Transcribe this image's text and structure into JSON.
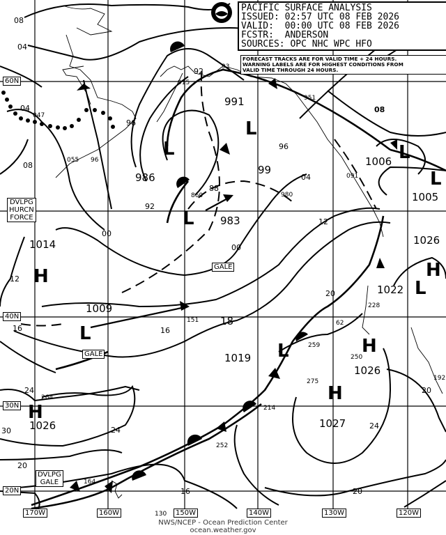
{
  "header": {
    "title": "PACIFIC SURFACE ANALYSIS",
    "issued": "ISSUED: 02:57 UTC 08 FEB 2026",
    "valid": "VALID:  00:00 UTC 08 FEB 2026",
    "forecaster": "FCSTR:  ANDERSON",
    "sources": "SOURCES: OPC NHC WPC HFO"
  },
  "note": [
    "FORECAST TRACKS ARE FOR VALID TIME + 24 HOURS.",
    "WARNING LABELS ARE FOR HIGHEST CONDITIONS FROM",
    "VALID TIME THROUGH 24 HOURS."
  ],
  "logo": "NOAA",
  "grid": {
    "latitudes": [
      "60N",
      "40N",
      "30N",
      "20N"
    ],
    "longitudes": [
      "170W",
      "160W",
      "150W",
      "140W",
      "130W",
      "120W"
    ]
  },
  "systems": [
    {
      "symbol": "L",
      "pressure": "991"
    },
    {
      "symbol": "L",
      "pressure": "986"
    },
    {
      "symbol": "L",
      "pressure": "983"
    },
    {
      "symbol": "L",
      "pressure": "99"
    },
    {
      "symbol": "H",
      "pressure": "1014"
    },
    {
      "symbol": "L",
      "pressure": "1009"
    },
    {
      "symbol": "L",
      "pressure": "1019"
    },
    {
      "symbol": "H",
      "pressure": "1026"
    },
    {
      "symbol": "H",
      "pressure": "1026"
    },
    {
      "symbol": "H",
      "pressure": "1027"
    },
    {
      "symbol": "L",
      "pressure": "1006"
    },
    {
      "symbol": "L",
      "pressure": "1005"
    },
    {
      "symbol": "H",
      "pressure": "1026"
    },
    {
      "symbol": "L",
      "pressure": "1022"
    }
  ],
  "isobar_labels": [
    "08",
    "04",
    "04",
    "08",
    "96",
    "92",
    "00",
    "12",
    "16",
    "16",
    "24",
    "30",
    "20",
    "24",
    "16",
    "20",
    "24",
    "20",
    "12",
    "04",
    "96",
    "88",
    "00",
    "18",
    "08",
    "20",
    "92"
  ],
  "station_labels": [
    "047",
    "055",
    "93",
    "915",
    "951",
    "091",
    "860",
    "980",
    "151",
    "264",
    "228",
    "259",
    "275",
    "214",
    "252",
    "164",
    "192",
    "62",
    "250",
    "130",
    "96"
  ],
  "warnings": {
    "hurricane_force": [
      "DVLPG",
      "HURCN",
      "FORCE"
    ],
    "gale_1": "GALE",
    "gale_2": "GALE",
    "developing_gale": [
      "DVLPG",
      "GALE"
    ]
  },
  "footer": {
    "agency": "NWS/NCEP - Ocean Prediction Center",
    "url": "ocean.weather.gov"
  }
}
